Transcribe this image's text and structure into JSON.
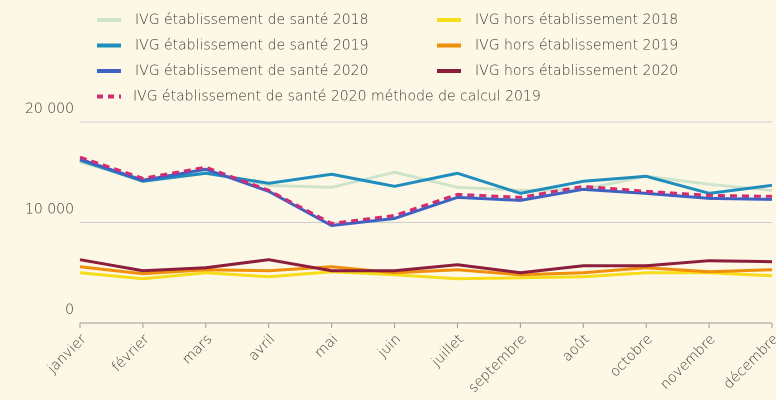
{
  "chart_data": {
    "type": "line",
    "categories": [
      "janvier",
      "février",
      "mars",
      "avril",
      "mai",
      "juin",
      "juillet",
      "septembre",
      "août",
      "octobre",
      "novembre",
      "décembre"
    ],
    "series": [
      {
        "name": "IVG établissement de santé 2018",
        "color": "#cfe3cc",
        "values": [
          16000,
          14300,
          15000,
          13700,
          13500,
          15000,
          13500,
          13200,
          13300,
          14600,
          13800,
          13200
        ]
      },
      {
        "name": "IVG établissement de santé 2019",
        "color": "#1f8dbd",
        "values": [
          16200,
          14100,
          14900,
          13900,
          14800,
          13600,
          14900,
          12900,
          14100,
          14600,
          12900,
          13700
        ]
      },
      {
        "name": "IVG établissement de santé 2020",
        "color": "#3d62c2",
        "values": [
          16300,
          14200,
          15300,
          13100,
          9700,
          10400,
          12500,
          12200,
          13300,
          12900,
          12400,
          12300
        ]
      },
      {
        "name": "IVG hors établissement 2018",
        "color": "#f7dc1a",
        "values": [
          5000,
          4400,
          5000,
          4600,
          5100,
          4800,
          4400,
          4500,
          4600,
          5000,
          5000,
          4700
        ]
      },
      {
        "name": "IVG hors établissement 2019",
        "color": "#f0900a",
        "values": [
          5600,
          4900,
          5300,
          5200,
          5600,
          5000,
          5300,
          4800,
          5000,
          5500,
          5100,
          5300
        ]
      },
      {
        "name": "IVG hors établissement 2020",
        "color": "#8c1d3c",
        "values": [
          6300,
          5200,
          5500,
          6300,
          5200,
          5200,
          5800,
          5000,
          5700,
          5700,
          6200,
          6100
        ]
      },
      {
        "name": "IVG établissement de santé 2020 méthode de calcul 2019",
        "color": "#d42a72",
        "dashed": true,
        "values": [
          16500,
          14400,
          15500,
          13200,
          9900,
          10700,
          12800,
          12500,
          13600,
          13100,
          12700,
          12600
        ]
      }
    ],
    "ylim": [
      0,
      20000
    ],
    "yticks": [
      0,
      {
        "value": 10000,
        "label": "10 000"
      },
      {
        "value": 20000,
        "label": "20 000"
      }
    ],
    "grid": true
  }
}
